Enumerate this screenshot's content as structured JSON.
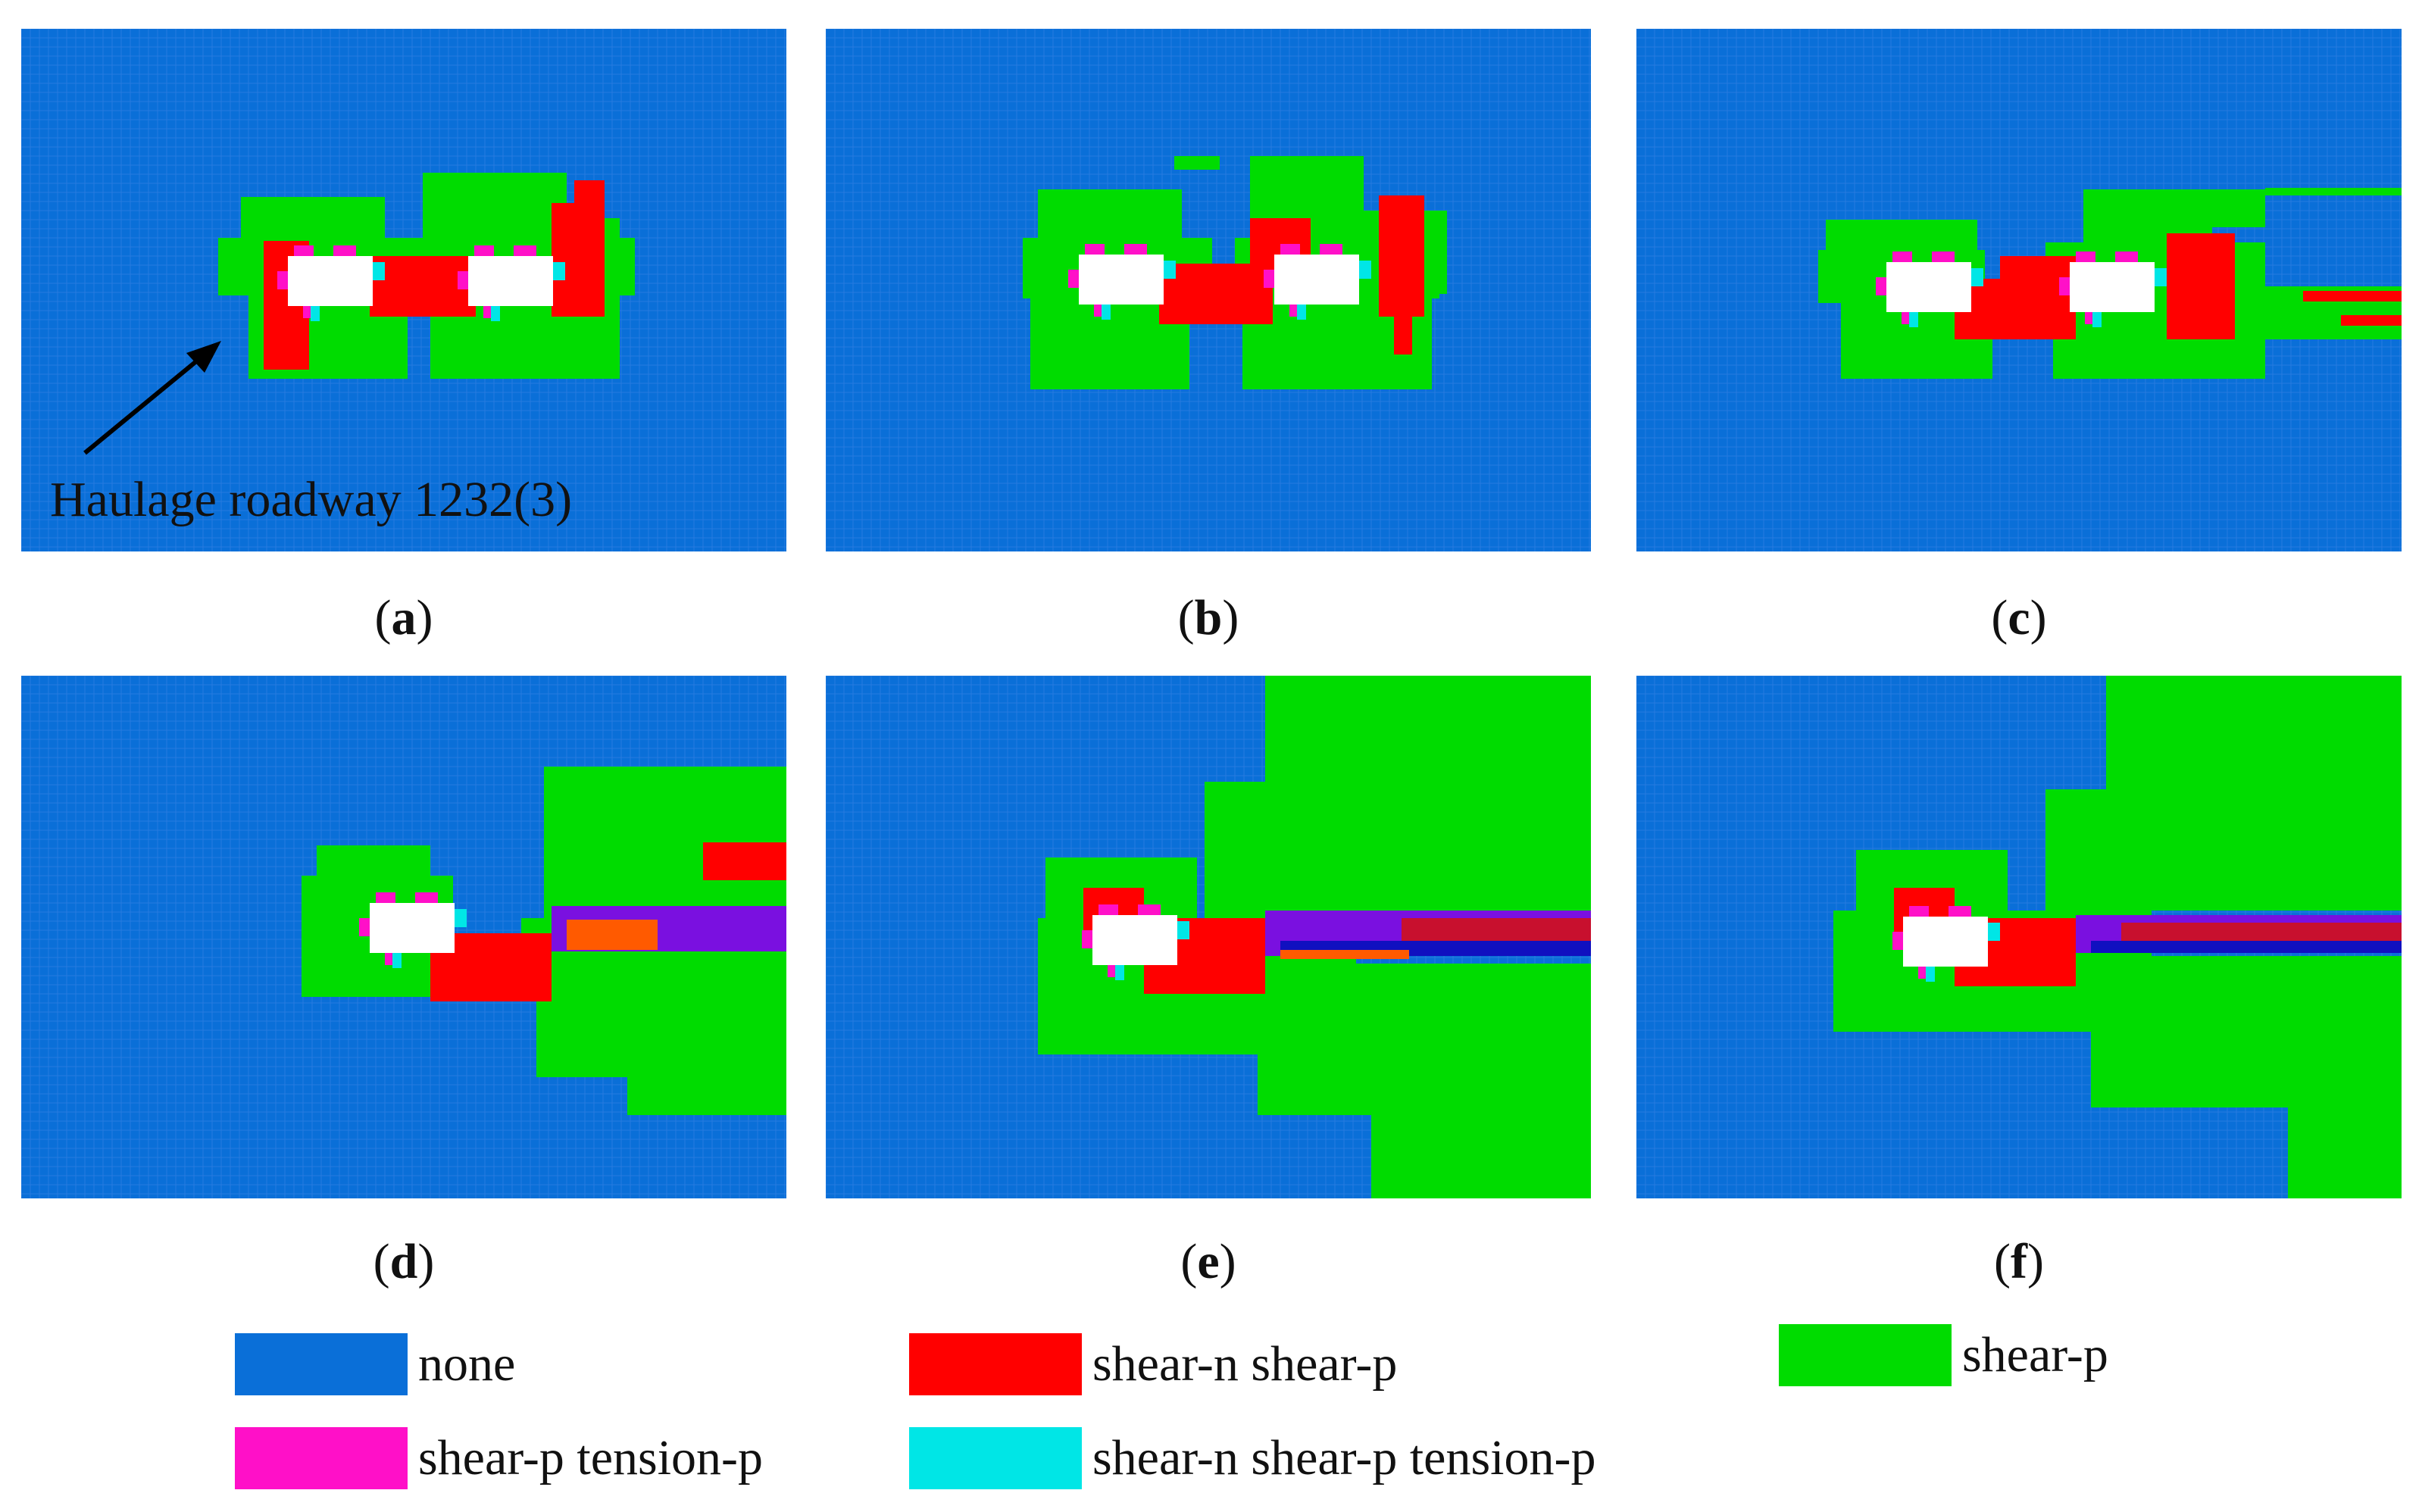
{
  "colors": {
    "none": "#0a6fd8",
    "shear_n_shear_p": "#ff0000",
    "shear_p": "#00dc00",
    "shear_p_tension_p": "#ff10c8",
    "shear_n_shear_p_tension_p": "#00e6e6",
    "opening": "#ffffff",
    "shear_n_band": "#7a10e0",
    "orange_band": "#ff5a00",
    "dark_blue_band": "#1010c0",
    "crimson_band": "#c8102e",
    "grid": "#3f86e6"
  },
  "panels": [
    {
      "id": "a",
      "caption": "a",
      "annotation": "Haulage roadway 1232(3)"
    },
    {
      "id": "b",
      "caption": "b"
    },
    {
      "id": "c",
      "caption": "c"
    },
    {
      "id": "d",
      "caption": "d"
    },
    {
      "id": "e",
      "caption": "e"
    },
    {
      "id": "f",
      "caption": "f"
    }
  ],
  "legend": [
    {
      "key": "none",
      "label": "none"
    },
    {
      "key": "shear_n_shear_p",
      "label": "shear-n shear-p"
    },
    {
      "key": "shear_p",
      "label": "shear-p"
    },
    {
      "key": "shear_p_tension_p",
      "label": "shear-p tension-p"
    },
    {
      "key": "shear_n_shear_p_tension_p",
      "label": "shear-n shear-p tension-p"
    }
  ]
}
